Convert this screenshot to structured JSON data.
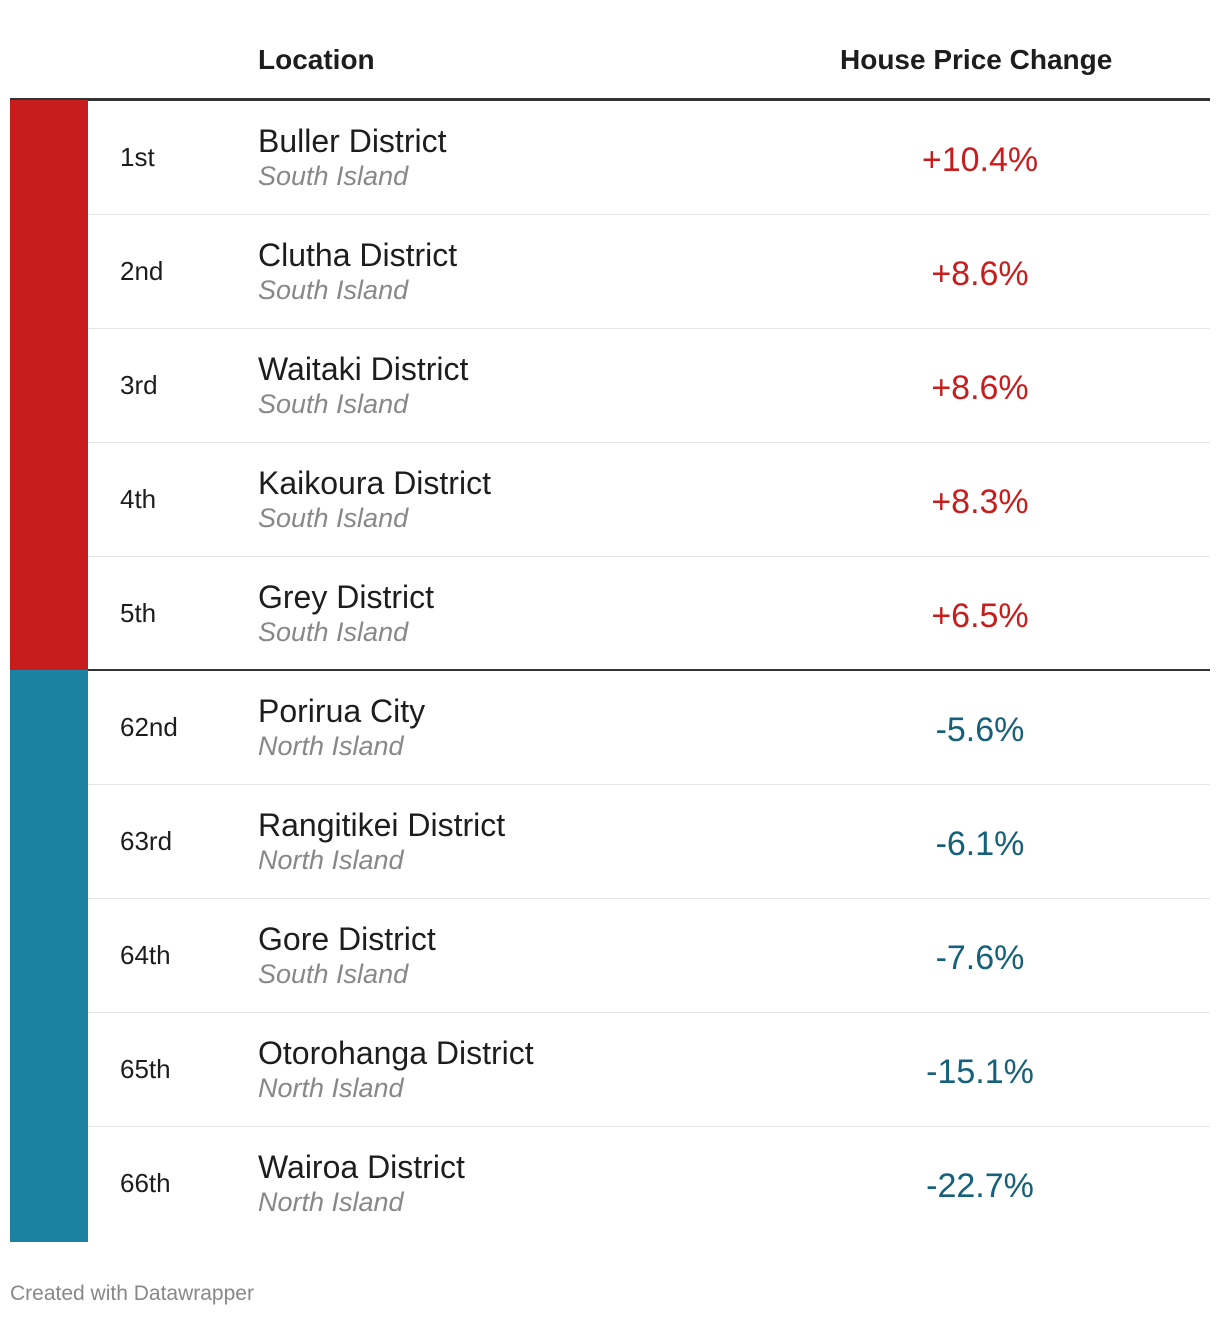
{
  "chart_data": {
    "type": "table",
    "columns": [
      "",
      "Location",
      "House Price Change"
    ],
    "colors": {
      "positive": "#c71e1d",
      "negative": "#1d81a2",
      "positive_text": "#c71e1d",
      "negative_text": "#15607a"
    },
    "rows": [
      {
        "rank": "1st",
        "location": "Buller District",
        "island": "South Island",
        "change": "+10.4%",
        "value": 10.4,
        "group": "positive"
      },
      {
        "rank": "2nd",
        "location": "Clutha District",
        "island": "South Island",
        "change": "+8.6%",
        "value": 8.6,
        "group": "positive"
      },
      {
        "rank": "3rd",
        "location": "Waitaki District",
        "island": "South Island",
        "change": "+8.6%",
        "value": 8.6,
        "group": "positive"
      },
      {
        "rank": "4th",
        "location": "Kaikoura District",
        "island": "South Island",
        "change": "+8.3%",
        "value": 8.3,
        "group": "positive"
      },
      {
        "rank": "5th",
        "location": "Grey District",
        "island": "South Island",
        "change": "+6.5%",
        "value": 6.5,
        "group": "positive"
      },
      {
        "rank": "62nd",
        "location": "Porirua City",
        "island": "North Island",
        "change": "-5.6%",
        "value": -5.6,
        "group": "negative"
      },
      {
        "rank": "63rd",
        "location": "Rangitikei District",
        "island": "North Island",
        "change": "-6.1%",
        "value": -6.1,
        "group": "negative"
      },
      {
        "rank": "64th",
        "location": "Gore District",
        "island": "South Island",
        "change": "-7.6%",
        "value": -7.6,
        "group": "negative"
      },
      {
        "rank": "65th",
        "location": "Otorohanga District",
        "island": "North Island",
        "change": "-15.1%",
        "value": -15.1,
        "group": "negative"
      },
      {
        "rank": "66th",
        "location": "Wairoa District",
        "island": "North Island",
        "change": "-22.7%",
        "value": -22.7,
        "group": "negative"
      }
    ]
  },
  "footer": "Created with Datawrapper"
}
